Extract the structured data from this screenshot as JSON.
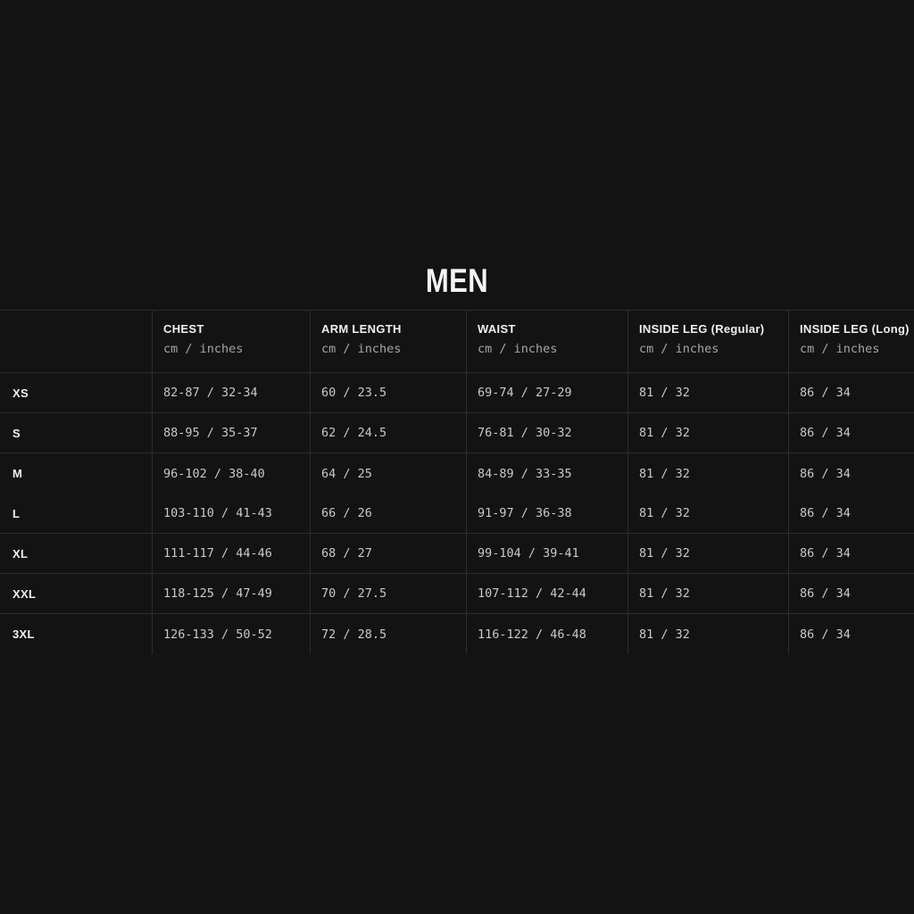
{
  "page": {
    "title": "MEN"
  },
  "colors": {
    "background": "#131313",
    "divider": "#2d2d2d",
    "title_text": "#f5f5f5",
    "header_text": "#f0f0f0",
    "units_text": "#a6a6a6",
    "value_text": "#c9c9c9"
  },
  "table": {
    "columns": [
      {
        "label": "",
        "sub": ""
      },
      {
        "label": "CHEST",
        "sub": "cm / inches"
      },
      {
        "label": "ARM LENGTH",
        "sub": "cm / inches"
      },
      {
        "label": "WAIST",
        "sub": "cm / inches"
      },
      {
        "label": "INSIDE LEG (Regular)",
        "sub": "cm / inches"
      },
      {
        "label": "INSIDE LEG (Long)",
        "sub": "cm / inches"
      }
    ],
    "rows": [
      {
        "size": "XS",
        "chest": "82-87 / 32-34",
        "arm_length": "60 / 23.5",
        "waist": "69-74 / 27-29",
        "inside_leg_regular": "81 / 32",
        "inside_leg_long": "86 / 34"
      },
      {
        "size": "S",
        "chest": "88-95 / 35-37",
        "arm_length": "62 / 24.5",
        "waist": "76-81 / 30-32",
        "inside_leg_regular": "81 / 32",
        "inside_leg_long": "86 / 34"
      },
      {
        "size": "M",
        "chest": "96-102 / 38-40",
        "arm_length": "64 / 25",
        "waist": "84-89 / 33-35",
        "inside_leg_regular": "81 / 32",
        "inside_leg_long": "86 / 34"
      },
      {
        "size": "L",
        "chest": "103-110 / 41-43",
        "arm_length": "66 / 26",
        "waist": "91-97 / 36-38",
        "inside_leg_regular": "81 / 32",
        "inside_leg_long": "86 / 34"
      },
      {
        "size": "XL",
        "chest": "111-117 / 44-46",
        "arm_length": "68 / 27",
        "waist": "99-104 / 39-41",
        "inside_leg_regular": "81 / 32",
        "inside_leg_long": "86 / 34"
      },
      {
        "size": "XXL",
        "chest": "118-125 / 47-49",
        "arm_length": "70 / 27.5",
        "waist": "107-112 / 42-44",
        "inside_leg_regular": "81 / 32",
        "inside_leg_long": "86 / 34"
      },
      {
        "size": "3XL",
        "chest": "126-133 / 50-52",
        "arm_length": "72 / 28.5",
        "waist": "116-122 / 46-48",
        "inside_leg_regular": "81 / 32",
        "inside_leg_long": "86 / 34"
      }
    ]
  }
}
